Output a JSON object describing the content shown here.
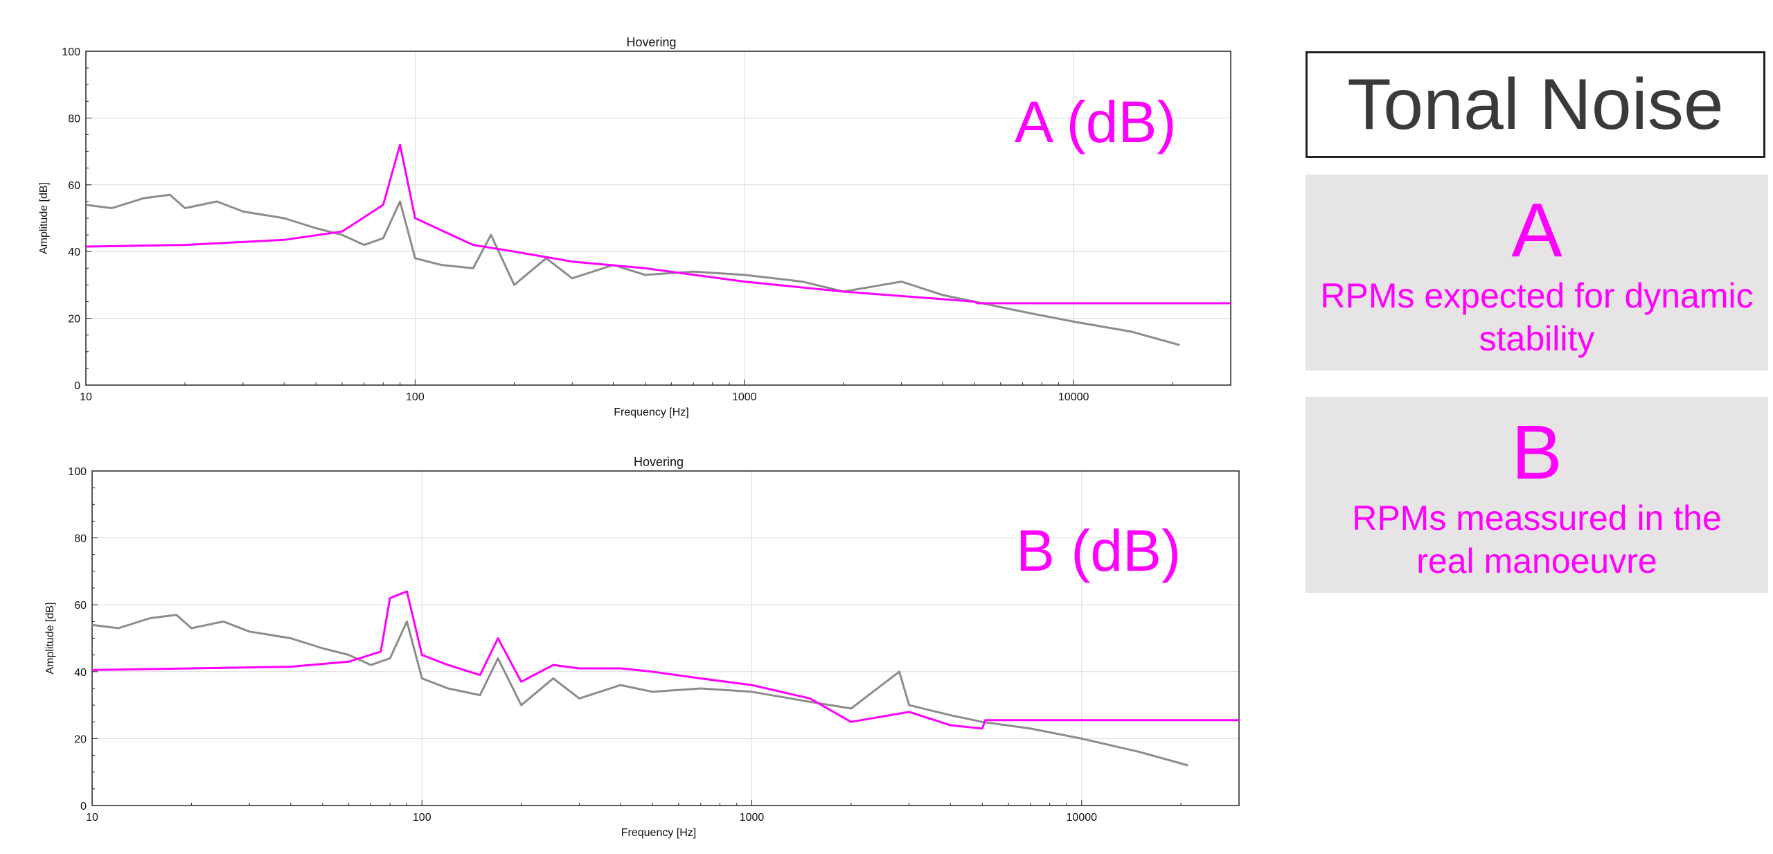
{
  "charts": [
    {
      "id": "A",
      "title": "Hovering",
      "overlay": "A (dB)",
      "xlabel": "Frequency [Hz]",
      "ylabel": "Amplitude [dB]",
      "xticks": [
        "10",
        "100",
        "1000",
        "10000"
      ],
      "yticks": [
        "0",
        "20",
        "40",
        "60",
        "80",
        "100"
      ]
    },
    {
      "id": "B",
      "title": "Hovering",
      "overlay": "B (dB)",
      "xlabel": "Frequency [Hz]",
      "ylabel": "Amplitude [dB]",
      "xticks": [
        "10",
        "100",
        "1000",
        "10000"
      ],
      "yticks": [
        "0",
        "20",
        "40",
        "60",
        "80",
        "100"
      ]
    }
  ],
  "chart_data": [
    {
      "type": "line",
      "title": "Hovering",
      "xlabel": "Frequency [Hz]",
      "ylabel": "Amplitude [dB]",
      "xscale": "log",
      "xlim": [
        10,
        30000
      ],
      "ylim": [
        0,
        100
      ],
      "grid": true,
      "series": [
        {
          "color": "#8c8c8c",
          "x": [
            10,
            12,
            15,
            18,
            20,
            25,
            30,
            40,
            50,
            60,
            70,
            80,
            90,
            100,
            120,
            150,
            170,
            200,
            250,
            300,
            400,
            500,
            700,
            1000,
            1500,
            2000,
            3000,
            4000,
            5000,
            7000,
            10000,
            15000,
            21000
          ],
          "y": [
            54,
            53,
            56,
            57,
            53,
            55,
            52,
            50,
            47,
            45,
            42,
            44,
            55,
            38,
            36,
            35,
            45,
            30,
            38,
            32,
            36,
            33,
            34,
            33,
            31,
            28,
            31,
            27,
            25,
            22,
            19,
            16,
            12
          ]
        },
        {
          "color": "#ff00ff",
          "x": [
            10,
            20,
            40,
            60,
            80,
            90,
            100,
            150,
            200,
            300,
            500,
            1000,
            2000,
            5000,
            5100,
            10000,
            30000
          ],
          "y": [
            41.5,
            42,
            43.5,
            46,
            54,
            72,
            50,
            42,
            40,
            37,
            35,
            31,
            28,
            25,
            24.5,
            24.5,
            24.5
          ]
        }
      ]
    },
    {
      "type": "line",
      "title": "Hovering",
      "xlabel": "Frequency [Hz]",
      "ylabel": "Amplitude [dB]",
      "xscale": "log",
      "xlim": [
        10,
        30000
      ],
      "ylim": [
        0,
        100
      ],
      "grid": true,
      "series": [
        {
          "color": "#8c8c8c",
          "x": [
            10,
            12,
            15,
            18,
            20,
            25,
            30,
            40,
            50,
            60,
            70,
            80,
            90,
            100,
            120,
            150,
            170,
            200,
            250,
            300,
            400,
            500,
            700,
            1000,
            1500,
            2000,
            2800,
            3000,
            4000,
            5000,
            7000,
            10000,
            15000,
            21000
          ],
          "y": [
            54,
            53,
            56,
            57,
            53,
            55,
            52,
            50,
            47,
            45,
            42,
            44,
            55,
            38,
            35,
            33,
            44,
            30,
            38,
            32,
            36,
            34,
            35,
            34,
            31,
            29,
            40,
            30,
            27,
            25,
            23,
            20,
            16,
            12
          ]
        },
        {
          "color": "#ff00ff",
          "x": [
            10,
            20,
            40,
            60,
            75,
            80,
            90,
            100,
            120,
            150,
            170,
            200,
            250,
            300,
            400,
            500,
            700,
            1000,
            1500,
            2000,
            3000,
            4000,
            5000,
            5100,
            10000,
            30000
          ],
          "y": [
            40.5,
            41,
            41.5,
            43,
            46,
            62,
            64,
            45,
            42,
            39,
            50,
            37,
            42,
            41,
            41,
            40,
            38,
            36,
            32,
            25,
            28,
            24,
            23,
            25.5,
            25.5,
            25.5
          ]
        }
      ]
    }
  ],
  "side": {
    "title": "Tonal Noise",
    "panels": [
      {
        "letter": "A",
        "text": "RPMs expected for dynamic stability"
      },
      {
        "letter": "B",
        "text": "RPMs meassured in the real manoeuvre"
      }
    ]
  }
}
